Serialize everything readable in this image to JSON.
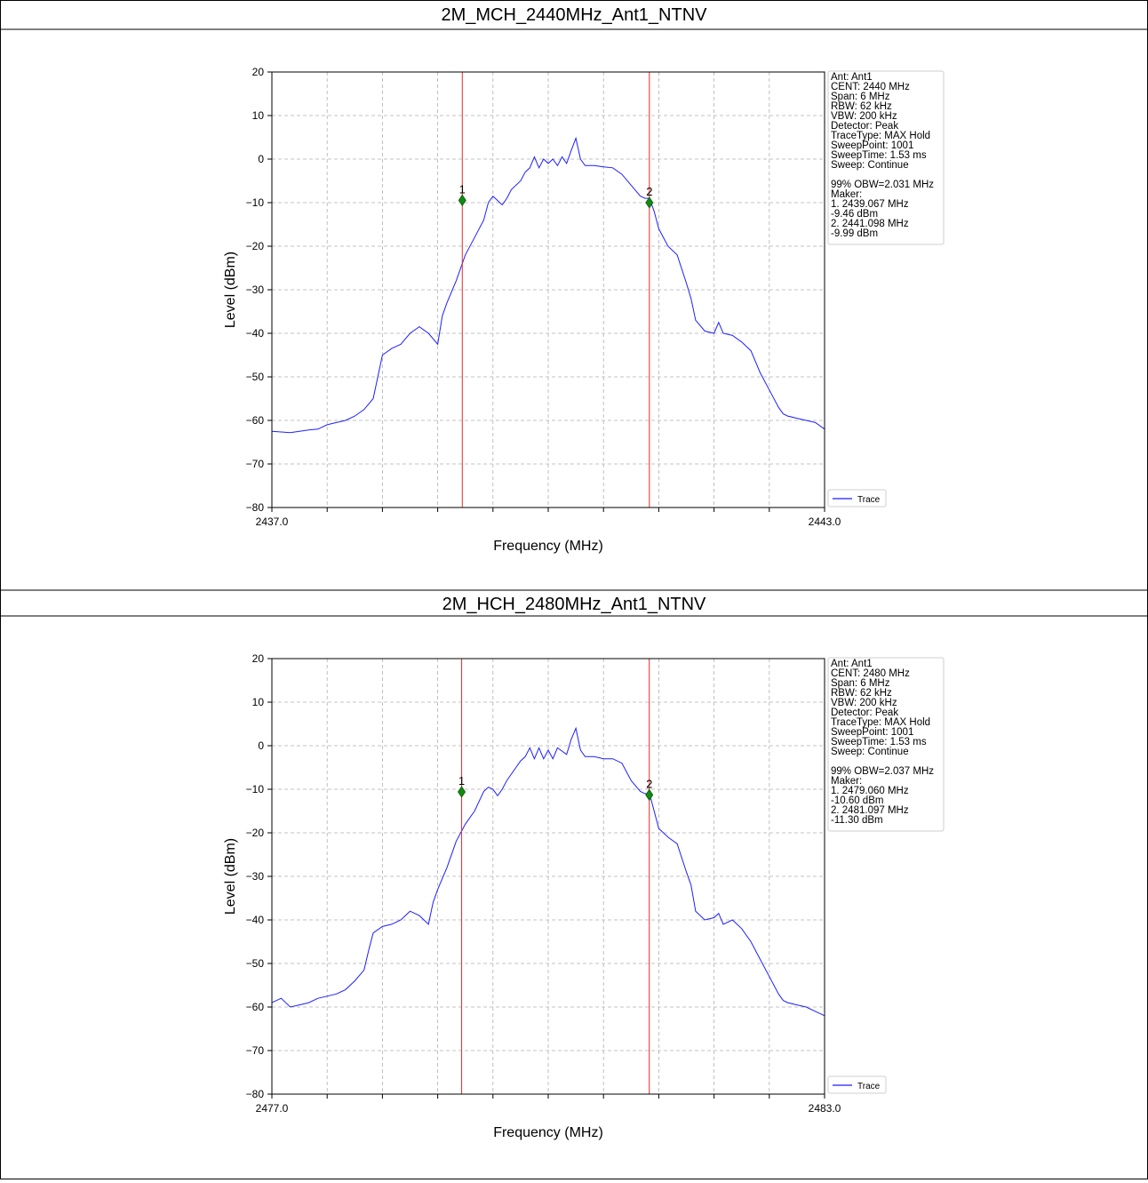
{
  "chart_data": [
    {
      "type": "line",
      "title": "2M_MCH_2440MHz_Ant1_NTNV",
      "xlabel": "Frequency (MHz)",
      "ylabel": "Level (dBm)",
      "xlim": [
        2437.0,
        2443.0
      ],
      "ylim": [
        -80,
        20
      ],
      "x_tick_labels": [
        "2437.0",
        "2443.0"
      ],
      "y_ticks": [
        20,
        10,
        0,
        -10,
        -20,
        -30,
        -40,
        -50,
        -60,
        -70,
        -80
      ],
      "y_tick_labels": [
        "20",
        "10",
        "0",
        "−10",
        "−20",
        "−30",
        "−40",
        "−50",
        "−60",
        "−70",
        "−80"
      ],
      "grid": true,
      "legend": {
        "position": "right-bottom",
        "entries": [
          "Trace"
        ]
      },
      "series": [
        {
          "name": "Trace",
          "color": "#1f1fff",
          "points": [
            [
              2437.0,
              -62.5
            ],
            [
              2437.2,
              -62.8
            ],
            [
              2437.4,
              -62.2
            ],
            [
              2437.5,
              -62.0
            ],
            [
              2437.6,
              -61.0
            ],
            [
              2437.7,
              -60.5
            ],
            [
              2437.8,
              -60.0
            ],
            [
              2437.9,
              -59.0
            ],
            [
              2438.0,
              -57.5
            ],
            [
              2438.1,
              -55.0
            ],
            [
              2438.15,
              -50.0
            ],
            [
              2438.2,
              -45.0
            ],
            [
              2438.3,
              -43.5
            ],
            [
              2438.4,
              -42.5
            ],
            [
              2438.5,
              -40.0
            ],
            [
              2438.6,
              -38.5
            ],
            [
              2438.7,
              -40.0
            ],
            [
              2438.8,
              -42.5
            ],
            [
              2438.85,
              -36.0
            ],
            [
              2438.9,
              -33.0
            ],
            [
              2439.0,
              -28.0
            ],
            [
              2439.1,
              -22.0
            ],
            [
              2439.2,
              -18.0
            ],
            [
              2439.3,
              -14.0
            ],
            [
              2439.35,
              -10.0
            ],
            [
              2439.4,
              -8.5
            ],
            [
              2439.45,
              -9.5
            ],
            [
              2439.5,
              -10.5
            ],
            [
              2439.55,
              -9.0
            ],
            [
              2439.6,
              -7.0
            ],
            [
              2439.7,
              -5.0
            ],
            [
              2439.75,
              -3.0
            ],
            [
              2439.8,
              -2.0
            ],
            [
              2439.85,
              0.5
            ],
            [
              2439.9,
              -2.0
            ],
            [
              2439.95,
              0.0
            ],
            [
              2440.0,
              -1.0
            ],
            [
              2440.05,
              0.0
            ],
            [
              2440.1,
              -1.5
            ],
            [
              2440.15,
              0.5
            ],
            [
              2440.2,
              -1.0
            ],
            [
              2440.25,
              2.0
            ],
            [
              2440.3,
              4.8
            ],
            [
              2440.35,
              0.0
            ],
            [
              2440.4,
              -1.5
            ],
            [
              2440.5,
              -1.5
            ],
            [
              2440.6,
              -1.8
            ],
            [
              2440.7,
              -2.0
            ],
            [
              2440.8,
              -3.5
            ],
            [
              2440.9,
              -6.0
            ],
            [
              2441.0,
              -8.5
            ],
            [
              2441.05,
              -9.0
            ],
            [
              2441.1,
              -9.0
            ],
            [
              2441.15,
              -12.0
            ],
            [
              2441.2,
              -16.0
            ],
            [
              2441.3,
              -20.0
            ],
            [
              2441.4,
              -22.0
            ],
            [
              2441.5,
              -28.5
            ],
            [
              2441.55,
              -32.0
            ],
            [
              2441.6,
              -37.0
            ],
            [
              2441.7,
              -39.5
            ],
            [
              2441.8,
              -40.0
            ],
            [
              2441.85,
              -37.5
            ],
            [
              2441.9,
              -40.0
            ],
            [
              2442.0,
              -40.5
            ],
            [
              2442.1,
              -42.0
            ],
            [
              2442.2,
              -44.0
            ],
            [
              2442.3,
              -49.0
            ],
            [
              2442.4,
              -53.0
            ],
            [
              2442.5,
              -57.0
            ],
            [
              2442.55,
              -58.5
            ],
            [
              2442.6,
              -59.0
            ],
            [
              2442.7,
              -59.5
            ],
            [
              2442.8,
              -60.0
            ],
            [
              2442.9,
              -60.5
            ],
            [
              2443.0,
              -62.0
            ]
          ]
        }
      ],
      "markers": [
        {
          "label": "1",
          "x": 2439.067,
          "y": -9.46
        },
        {
          "label": "2",
          "x": 2441.098,
          "y": -9.99
        }
      ],
      "infobox": [
        "Ant: Ant1",
        "CENT: 2440 MHz",
        "Span: 6 MHz",
        "RBW: 62 kHz",
        "VBW: 200 kHz",
        "Detector: Peak",
        "TraceType: MAX Hold",
        "SweepPoint: 1001",
        "SweepTime: 1.53 ms",
        "Sweep: Continue",
        "",
        "99% OBW=2.031 MHz",
        "Maker:",
        "1. 2439.067 MHz",
        "    -9.46 dBm",
        "2. 2441.098 MHz",
        "    -9.99 dBm"
      ]
    },
    {
      "type": "line",
      "title": "2M_HCH_2480MHz_Ant1_NTNV",
      "xlabel": "Frequency (MHz)",
      "ylabel": "Level (dBm)",
      "xlim": [
        2477.0,
        2483.0
      ],
      "ylim": [
        -80,
        20
      ],
      "x_tick_labels": [
        "2477.0",
        "2483.0"
      ],
      "y_ticks": [
        20,
        10,
        0,
        -10,
        -20,
        -30,
        -40,
        -50,
        -60,
        -70,
        -80
      ],
      "y_tick_labels": [
        "20",
        "10",
        "0",
        "−10",
        "−20",
        "−30",
        "−40",
        "−50",
        "−60",
        "−70",
        "−80"
      ],
      "grid": true,
      "legend": {
        "position": "right-bottom",
        "entries": [
          "Trace"
        ]
      },
      "series": [
        {
          "name": "Trace",
          "color": "#1f1fff",
          "points": [
            [
              2477.0,
              -59.0
            ],
            [
              2477.1,
              -58.0
            ],
            [
              2477.2,
              -60.0
            ],
            [
              2477.3,
              -59.5
            ],
            [
              2477.4,
              -59.0
            ],
            [
              2477.5,
              -58.0
            ],
            [
              2477.6,
              -57.5
            ],
            [
              2477.7,
              -57.0
            ],
            [
              2477.8,
              -56.0
            ],
            [
              2477.9,
              -54.0
            ],
            [
              2478.0,
              -51.5
            ],
            [
              2478.05,
              -47.0
            ],
            [
              2478.1,
              -43.0
            ],
            [
              2478.2,
              -41.5
            ],
            [
              2478.3,
              -41.0
            ],
            [
              2478.4,
              -40.0
            ],
            [
              2478.5,
              -38.0
            ],
            [
              2478.6,
              -39.0
            ],
            [
              2478.7,
              -41.0
            ],
            [
              2478.75,
              -36.0
            ],
            [
              2478.8,
              -33.0
            ],
            [
              2478.9,
              -28.0
            ],
            [
              2479.0,
              -22.0
            ],
            [
              2479.1,
              -18.0
            ],
            [
              2479.2,
              -15.0
            ],
            [
              2479.3,
              -10.5
            ],
            [
              2479.35,
              -9.5
            ],
            [
              2479.4,
              -10.0
            ],
            [
              2479.45,
              -11.5
            ],
            [
              2479.5,
              -10.0
            ],
            [
              2479.55,
              -8.0
            ],
            [
              2479.6,
              -6.5
            ],
            [
              2479.7,
              -3.5
            ],
            [
              2479.75,
              -2.5
            ],
            [
              2479.8,
              -0.5
            ],
            [
              2479.85,
              -3.0
            ],
            [
              2479.9,
              -0.5
            ],
            [
              2479.95,
              -3.0
            ],
            [
              2480.0,
              -1.0
            ],
            [
              2480.05,
              -3.0
            ],
            [
              2480.1,
              -0.5
            ],
            [
              2480.2,
              -2.0
            ],
            [
              2480.25,
              1.5
            ],
            [
              2480.3,
              4.0
            ],
            [
              2480.35,
              -1.0
            ],
            [
              2480.4,
              -2.5
            ],
            [
              2480.5,
              -2.5
            ],
            [
              2480.6,
              -3.0
            ],
            [
              2480.7,
              -3.0
            ],
            [
              2480.8,
              -4.0
            ],
            [
              2480.9,
              -8.0
            ],
            [
              2481.0,
              -10.5
            ],
            [
              2481.05,
              -11.0
            ],
            [
              2481.1,
              -11.0
            ],
            [
              2481.15,
              -15.0
            ],
            [
              2481.2,
              -19.0
            ],
            [
              2481.3,
              -21.0
            ],
            [
              2481.4,
              -22.5
            ],
            [
              2481.5,
              -29.0
            ],
            [
              2481.55,
              -32.0
            ],
            [
              2481.6,
              -38.0
            ],
            [
              2481.7,
              -40.0
            ],
            [
              2481.8,
              -39.5
            ],
            [
              2481.85,
              -38.5
            ],
            [
              2481.9,
              -41.0
            ],
            [
              2482.0,
              -40.0
            ],
            [
              2482.1,
              -42.0
            ],
            [
              2482.2,
              -45.0
            ],
            [
              2482.3,
              -49.0
            ],
            [
              2482.4,
              -53.0
            ],
            [
              2482.5,
              -57.0
            ],
            [
              2482.55,
              -58.5
            ],
            [
              2482.6,
              -59.0
            ],
            [
              2482.7,
              -59.5
            ],
            [
              2482.8,
              -60.0
            ],
            [
              2482.9,
              -61.0
            ],
            [
              2483.0,
              -62.0
            ]
          ]
        }
      ],
      "markers": [
        {
          "label": "1",
          "x": 2479.06,
          "y": -10.6
        },
        {
          "label": "2",
          "x": 2481.097,
          "y": -11.3
        }
      ],
      "infobox": [
        "Ant: Ant1",
        "CENT: 2480 MHz",
        "Span: 6 MHz",
        "RBW: 62 kHz",
        "VBW: 200 kHz",
        "Detector: Peak",
        "TraceType: MAX Hold",
        "SweepPoint: 1001",
        "SweepTime: 1.53 ms",
        "Sweep: Continue",
        "",
        "99% OBW=2.037 MHz",
        "Maker:",
        "1. 2479.060 MHz",
        "    -10.60 dBm",
        "2. 2481.097 MHz",
        "    -11.30 dBm"
      ]
    }
  ]
}
